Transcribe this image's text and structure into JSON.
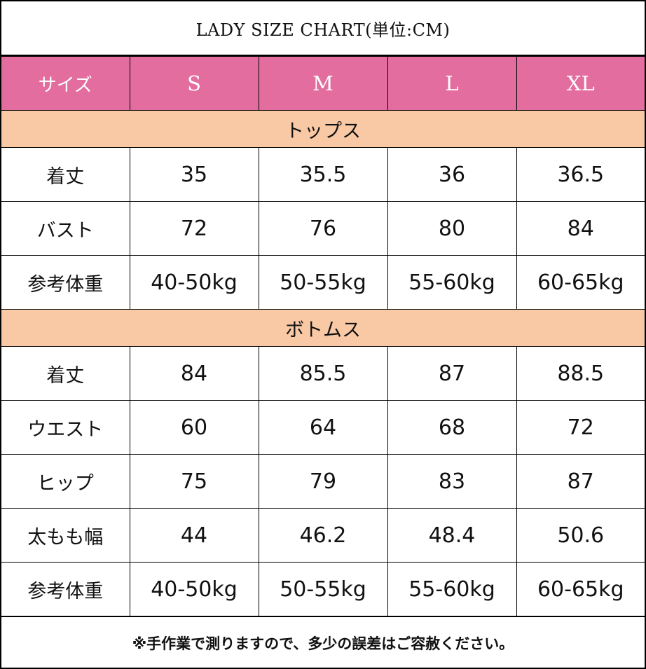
{
  "title": "LADY SIZE CHART(単位:CM)",
  "header": [
    "サイズ",
    "S",
    "M",
    "L",
    "XL"
  ],
  "colors": {
    "header_bg": "#e36d9f",
    "section_bg": "#f8c9a4"
  },
  "sections": [
    {
      "name": "トップス",
      "rows": [
        {
          "label": "着丈",
          "values": [
            "35",
            "35.5",
            "36",
            "36.5"
          ]
        },
        {
          "label": "バスト",
          "values": [
            "72",
            "76",
            "80",
            "84"
          ]
        },
        {
          "label": "参考体重",
          "values": [
            "40-50kg",
            "50-55kg",
            "55-60kg",
            "60-65kg"
          ]
        }
      ]
    },
    {
      "name": "ボトムス",
      "rows": [
        {
          "label": "着丈",
          "values": [
            "84",
            "85.5",
            "87",
            "88.5"
          ]
        },
        {
          "label": "ウエスト",
          "values": [
            "60",
            "64",
            "68",
            "72"
          ]
        },
        {
          "label": "ヒップ",
          "values": [
            "75",
            "79",
            "83",
            "87"
          ]
        },
        {
          "label": "太もも幅",
          "values": [
            "44",
            "46.2",
            "48.4",
            "50.6"
          ]
        },
        {
          "label": "参考体重",
          "values": [
            "40-50kg",
            "50-55kg",
            "55-60kg",
            "60-65kg"
          ]
        }
      ]
    }
  ],
  "note": "※手作業で測りますので、多少の誤差はご容赦ください。"
}
